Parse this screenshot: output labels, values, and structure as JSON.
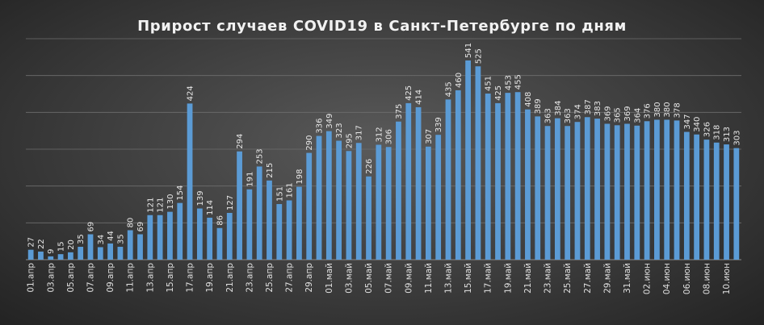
{
  "chart_data": {
    "type": "bar",
    "title": "Прирост случаев COVID19 в Санкт-Петербурге по дням",
    "xlabel": "",
    "ylabel": "",
    "ylim": [
      0,
      600
    ],
    "grid": true,
    "bar_color": "#5b9bd5",
    "categories": [
      "01.апр",
      "02.апр",
      "03.апр",
      "04.апр",
      "05.апр",
      "06.апр",
      "07.апр",
      "08.апр",
      "09.апр",
      "10.апр",
      "11.апр",
      "12.апр",
      "13.апр",
      "14.апр",
      "15.апр",
      "16.апр",
      "17.апр",
      "18.апр",
      "19.апр",
      "20.апр",
      "21.апр",
      "22.апр",
      "23.апр",
      "24.апр",
      "25.апр",
      "26.апр",
      "27.апр",
      "28.апр",
      "29.апр",
      "30.апр",
      "01.май",
      "02.май",
      "03.май",
      "04.май",
      "05.май",
      "06.май",
      "07.май",
      "08.май",
      "09.май",
      "10.май",
      "11.май",
      "12.май",
      "13.май",
      "14.май",
      "15.май",
      "16.май",
      "17.май",
      "18.май",
      "19.май",
      "20.май",
      "21.май",
      "22.май",
      "23.май",
      "24.май",
      "25.май",
      "26.май",
      "27.май",
      "28.май",
      "29.май",
      "30.май",
      "31.май",
      "01.июн",
      "02.июн",
      "03.июн",
      "04.июн",
      "05.июн",
      "06.июн",
      "07.июн",
      "08.июн",
      "09.июн",
      "10.июн",
      "11.июн"
    ],
    "values": [
      27,
      22,
      9,
      15,
      20,
      35,
      69,
      34,
      44,
      35,
      80,
      69,
      121,
      121,
      130,
      154,
      424,
      139,
      114,
      86,
      127,
      294,
      191,
      253,
      215,
      151,
      161,
      198,
      290,
      336,
      349,
      323,
      295,
      317,
      226,
      312,
      306,
      375,
      425,
      414,
      307,
      339,
      435,
      460,
      541,
      525,
      451,
      425,
      453,
      455,
      408,
      389,
      363,
      384,
      363,
      374,
      387,
      383,
      369,
      365,
      369,
      364,
      376,
      380,
      380,
      378,
      347,
      340,
      326,
      318,
      313,
      303
    ],
    "tick_labels": [
      "01.апр",
      "03.апр",
      "05.апр",
      "07.апр",
      "09.апр",
      "11.апр",
      "13.апр",
      "15.апр",
      "17.апр",
      "19.апр",
      "21.апр",
      "23.апр",
      "25.апр",
      "27.апр",
      "29.апр",
      "01.май",
      "03.май",
      "05.май",
      "07.май",
      "09.май",
      "11.май",
      "13.май",
      "15.май",
      "17.май",
      "19.май",
      "21.май",
      "23.май",
      "25.май",
      "27.май",
      "29.май",
      "31.май",
      "02.июн",
      "04.июн",
      "06.июн",
      "08.июн",
      "10.июн"
    ]
  }
}
